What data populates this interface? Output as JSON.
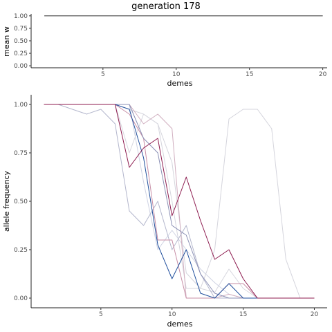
{
  "chart_data": [
    {
      "type": "line",
      "title": "generation 178",
      "xlabel": "demes",
      "ylabel": "mean w",
      "xlim": [
        0.1,
        20.3
      ],
      "ylim": [
        -0.04,
        1.04
      ],
      "xticks": [
        5,
        10,
        15,
        20
      ],
      "yticks": [
        0,
        0.25,
        0.5,
        0.75,
        1
      ],
      "ytick_labels": [
        "0.00",
        "0.25",
        "0.50",
        "0.75",
        "1.00"
      ],
      "grid": false,
      "series": [
        {
          "color": "#333333",
          "x": [
            1,
            20
          ],
          "y": [
            1,
            1
          ]
        }
      ]
    },
    {
      "type": "line",
      "title": "",
      "xlabel": "demes",
      "ylabel": "allele frequency",
      "xlim": [
        0.1,
        20.9
      ],
      "ylim": [
        -0.05,
        1.05
      ],
      "xticks": [
        5,
        10,
        15,
        20
      ],
      "yticks": [
        0,
        0.25,
        0.5,
        0.75,
        1
      ],
      "ytick_labels": [
        "0.00",
        "0.25",
        "0.50",
        "0.75",
        "1.00"
      ],
      "grid": false,
      "series": [
        {
          "color": "#d4d4dc",
          "x": [
            1,
            2,
            3,
            4,
            5,
            6,
            7,
            8,
            9,
            10,
            11,
            12,
            13,
            14,
            15,
            16,
            17,
            18,
            19,
            20
          ],
          "y": [
            1,
            1,
            1,
            1,
            1,
            1,
            0.975,
            0.95,
            0.9,
            0.7,
            0.13,
            0.05,
            0.25,
            0.925,
            0.975,
            0.975,
            0.875,
            0.2,
            0,
            0
          ]
        },
        {
          "color": "#d6d6de",
          "x": [
            1,
            2,
            3,
            4,
            5,
            6,
            7,
            8,
            9,
            10,
            11,
            12,
            13,
            14,
            15,
            16,
            17,
            18,
            19,
            20
          ],
          "y": [
            1,
            1,
            1,
            1,
            1,
            1,
            0.75,
            0.95,
            0.9,
            0.5,
            0.05,
            0.05,
            0.03,
            0.15,
            0.05,
            0,
            0,
            0,
            0,
            0
          ]
        },
        {
          "color": "#cfd3e3",
          "x": [
            1,
            2,
            3,
            4,
            5,
            6,
            7,
            8,
            9,
            10,
            11,
            12,
            13,
            14,
            15,
            16,
            17,
            18,
            19,
            20
          ],
          "y": [
            1,
            1,
            1,
            1,
            1,
            1,
            1,
            0.6,
            0.25,
            0.35,
            0.25,
            0.15,
            0.08,
            0.02,
            0,
            0,
            0,
            0,
            0,
            0
          ]
        },
        {
          "color": "#d0aebf",
          "x": [
            1,
            2,
            3,
            4,
            5,
            6,
            7,
            8,
            9,
            10,
            11,
            12,
            13,
            14,
            15,
            16,
            17,
            18,
            19,
            20
          ],
          "y": [
            1,
            1,
            1,
            1,
            1,
            1,
            1,
            0.9,
            0.95,
            0.875,
            0,
            0,
            0,
            0.02,
            0,
            0,
            0,
            0,
            0,
            0
          ]
        },
        {
          "color": "#b3b6cc",
          "x": [
            1,
            2,
            3,
            4,
            5,
            6,
            7,
            8,
            9,
            10,
            11,
            12,
            13,
            14,
            15,
            16,
            17,
            18,
            19,
            20
          ],
          "y": [
            1,
            1,
            0.975,
            0.95,
            0.975,
            0.9,
            0.45,
            0.375,
            0.5,
            0.25,
            0.375,
            0.125,
            0,
            0,
            0,
            0,
            0,
            0,
            0,
            0
          ]
        },
        {
          "color": "#c78ea6",
          "x": [
            1,
            2,
            3,
            4,
            5,
            6,
            7,
            8,
            9,
            10,
            11,
            12,
            13,
            14,
            15,
            16,
            17,
            18,
            19,
            20
          ],
          "y": [
            1,
            1,
            1,
            1,
            1,
            1,
            0.95,
            0.825,
            0.3,
            0.3,
            0,
            0,
            0,
            0.075,
            0.075,
            0,
            0,
            0,
            0,
            0
          ]
        },
        {
          "color": "#8a8fb4",
          "x": [
            1,
            2,
            3,
            4,
            5,
            6,
            7,
            8,
            9,
            10,
            11,
            12,
            13,
            14,
            15,
            16,
            17,
            18,
            19,
            20
          ],
          "y": [
            1,
            1,
            1,
            1,
            1,
            1,
            1,
            0.825,
            0.75,
            0.375,
            0.325,
            0.125,
            0.025,
            0,
            0,
            0,
            0,
            0,
            0,
            0
          ]
        },
        {
          "color": "#1f4e9c",
          "x": [
            1,
            2,
            3,
            4,
            5,
            6,
            7,
            8,
            9,
            10,
            11,
            12,
            13,
            14,
            15,
            16,
            17,
            18,
            19,
            20
          ],
          "y": [
            1,
            1,
            1,
            1,
            1,
            1,
            0.975,
            0.725,
            0.275,
            0.1,
            0.25,
            0.025,
            0,
            0.075,
            0,
            0,
            0,
            0,
            0,
            0
          ]
        },
        {
          "color": "#8c1a4e",
          "x": [
            1,
            2,
            3,
            4,
            5,
            6,
            7,
            8,
            9,
            10,
            11,
            12,
            13,
            14,
            15,
            16,
            17,
            18,
            19,
            20
          ],
          "y": [
            1,
            1,
            1,
            1,
            1,
            1,
            0.675,
            0.775,
            0.825,
            0.425,
            0.625,
            0.4,
            0.2,
            0.25,
            0.1,
            0,
            0,
            0,
            0,
            0
          ]
        }
      ]
    }
  ]
}
